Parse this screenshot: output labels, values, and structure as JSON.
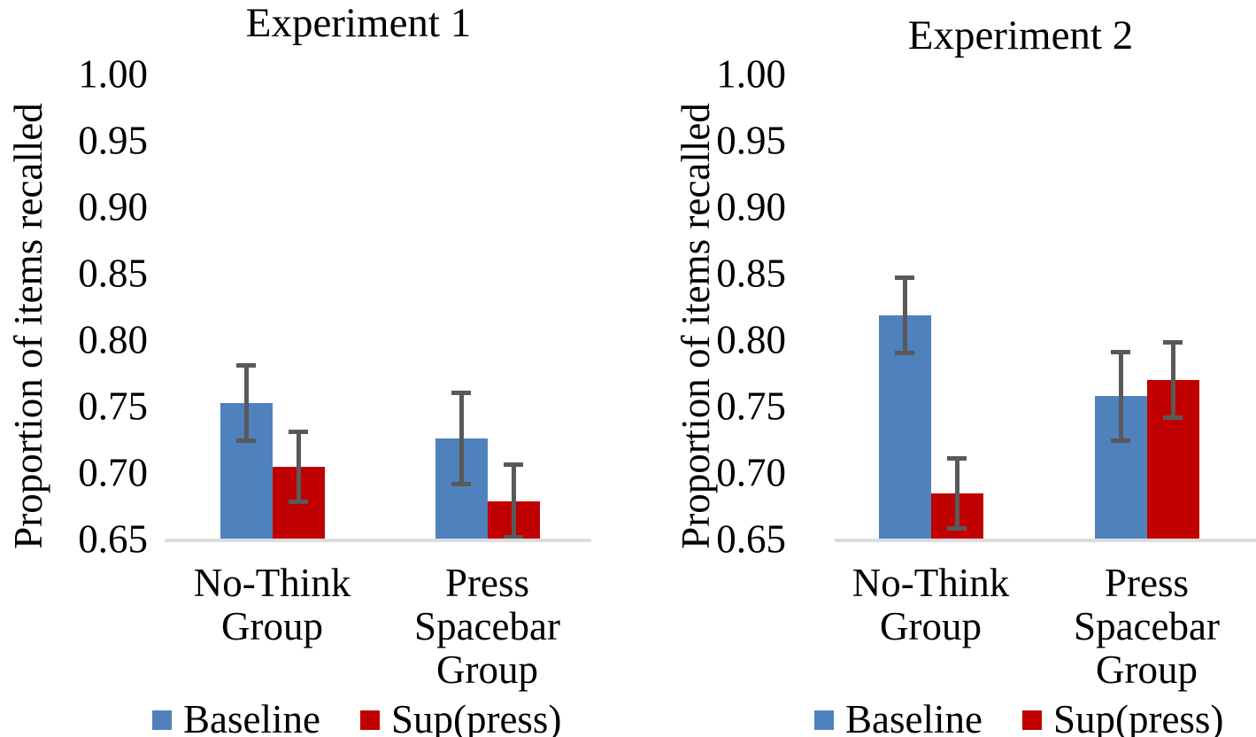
{
  "page": {
    "background": "#ffffff"
  },
  "colors": {
    "baseline": "#4F81BD",
    "suppress": "#C00000",
    "error_bar": "#595959",
    "axis_line": "#DCDCDC",
    "text": "#000000"
  },
  "chart_data": [
    {
      "type": "bar",
      "title": "Experiment 1",
      "ylabel": "Proportion of items recalled",
      "xlabel": "",
      "ylim": [
        0.65,
        1.0
      ],
      "yticks": [
        1.0,
        0.95,
        0.9,
        0.85,
        0.8,
        0.75,
        0.7,
        0.65
      ],
      "ytick_labels": [
        "1.00",
        "0.95",
        "0.90",
        "0.85",
        "0.80",
        "0.75",
        "0.70",
        "0.65"
      ],
      "grid": false,
      "legend_position": "bottom",
      "categories": [
        "No-Think Group",
        "Press Spacebar Group"
      ],
      "category_lines": [
        [
          "No-Think",
          "Group"
        ],
        [
          "Press",
          "Spacebar",
          "Group"
        ]
      ],
      "series": [
        {
          "name": "Baseline",
          "color": "#4F81BD",
          "values": [
            0.753,
            0.726
          ],
          "errors": [
            0.03,
            0.036
          ]
        },
        {
          "name": "Sup(press)",
          "color": "#C00000",
          "values": [
            0.705,
            0.679
          ],
          "errors": [
            0.028,
            0.029
          ]
        }
      ]
    },
    {
      "type": "bar",
      "title": "Experiment 2",
      "ylabel": "Proportion of items recalled",
      "xlabel": "",
      "ylim": [
        0.65,
        1.0
      ],
      "yticks": [
        1.0,
        0.95,
        0.9,
        0.85,
        0.8,
        0.75,
        0.7,
        0.65
      ],
      "ytick_labels": [
        "1.00",
        "0.95",
        "0.90",
        "0.85",
        "0.80",
        "0.75",
        "0.70",
        "0.65"
      ],
      "grid": false,
      "legend_position": "bottom",
      "categories": [
        "No-Think Group",
        "Press Spacebar Group"
      ],
      "category_lines": [
        [
          "No-Think",
          "Group"
        ],
        [
          "Press",
          "Spacebar",
          "Group"
        ]
      ],
      "series": [
        {
          "name": "Baseline",
          "color": "#4F81BD",
          "values": [
            0.819,
            0.758
          ],
          "errors": [
            0.03,
            0.035
          ]
        },
        {
          "name": "Sup(press)",
          "color": "#C00000",
          "values": [
            0.685,
            0.77
          ],
          "errors": [
            0.028,
            0.03
          ]
        }
      ]
    }
  ]
}
